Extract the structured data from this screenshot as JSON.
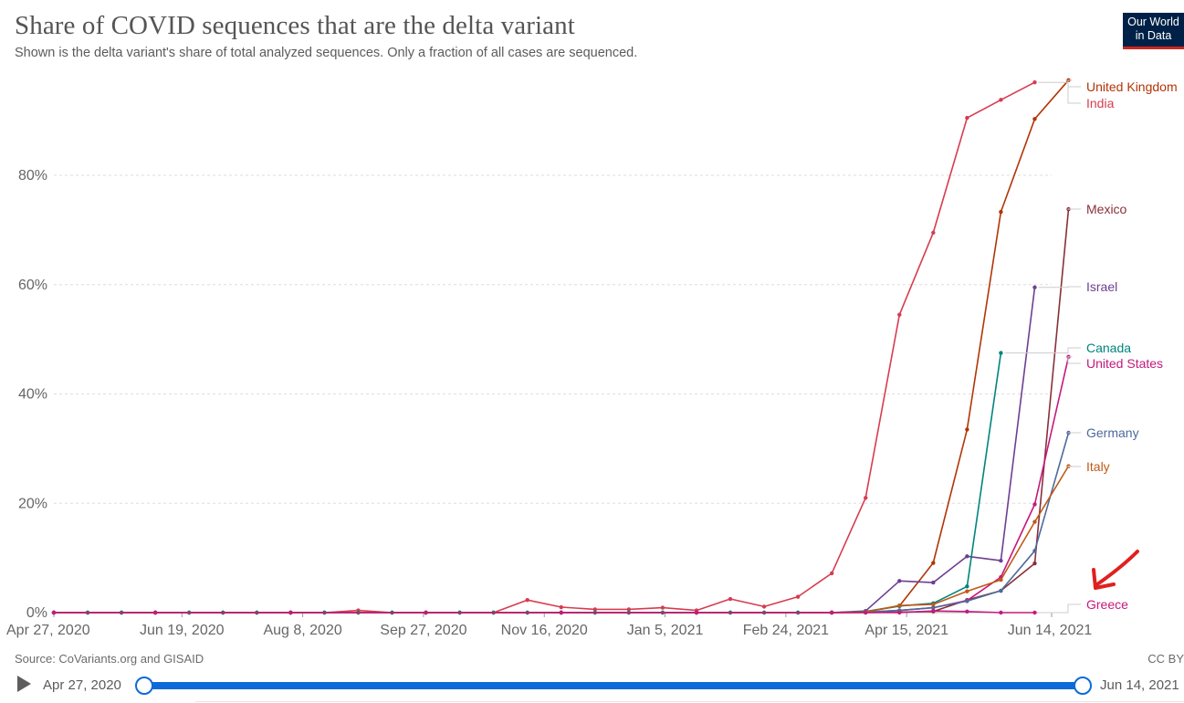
{
  "header": {
    "title": "Share of COVID sequences that are the delta variant",
    "subtitle": "Shown is the delta variant's share of total analyzed sequences. Only a fraction of all cases are sequenced.",
    "logo_line1": "Our World",
    "logo_line2": "in Data"
  },
  "footer": {
    "source": "Source: CoVariants.org and GISAID",
    "license": "CC BY"
  },
  "timeline": {
    "start_label": "Apr 27, 2020",
    "end_label": "Jun 14, 2021",
    "range_selected": [
      0,
      1
    ]
  },
  "annotation": {
    "arrow_color": "#e02020",
    "points_to": "Greece"
  },
  "chart_data": {
    "type": "line",
    "title": "Share of COVID sequences that are the delta variant",
    "subtitle": "Shown is the delta variant's share of total analyzed sequences. Only a fraction of all cases are sequenced.",
    "xlabel": "",
    "ylabel": "",
    "x_unit": "date",
    "x_ticks": [
      "Apr 27, 2020",
      "Jun 19, 2020",
      "Aug 8, 2020",
      "Sep 27, 2020",
      "Nov 16, 2020",
      "Jan 5, 2021",
      "Feb 24, 2021",
      "Apr 15, 2021",
      "Jun 14, 2021"
    ],
    "x_tick_dates": [
      "2020-04-27",
      "2020-06-19",
      "2020-08-08",
      "2020-09-27",
      "2020-11-16",
      "2021-01-05",
      "2021-02-24",
      "2021-04-15",
      "2021-06-14"
    ],
    "y_ticks": [
      0,
      20,
      40,
      60,
      80
    ],
    "y_tick_labels": [
      "0%",
      "20%",
      "40%",
      "60%",
      "80%"
    ],
    "ylim": [
      0,
      97
    ],
    "xlim": [
      "2020-04-27",
      "2021-06-14"
    ],
    "grid": "horizontal dashed",
    "legend": "right-side line end labels",
    "series": [
      {
        "name": "United Kingdom",
        "color": "#b13507",
        "label_offset": -7,
        "points": [
          [
            "2020-04-27",
            0
          ],
          [
            "2020-05-11",
            0
          ],
          [
            "2020-05-25",
            0
          ],
          [
            "2020-06-08",
            0
          ],
          [
            "2020-06-22",
            0
          ],
          [
            "2020-07-06",
            0
          ],
          [
            "2020-07-20",
            0
          ],
          [
            "2020-08-03",
            0
          ],
          [
            "2020-08-17",
            0
          ],
          [
            "2020-08-31",
            0
          ],
          [
            "2020-09-14",
            0
          ],
          [
            "2020-09-28",
            0
          ],
          [
            "2020-10-12",
            0
          ],
          [
            "2020-10-26",
            0
          ],
          [
            "2020-11-09",
            0
          ],
          [
            "2020-11-23",
            0
          ],
          [
            "2020-12-07",
            0
          ],
          [
            "2020-12-21",
            0
          ],
          [
            "2021-01-04",
            0
          ],
          [
            "2021-01-18",
            0
          ],
          [
            "2021-02-01",
            0
          ],
          [
            "2021-02-15",
            0
          ],
          [
            "2021-03-01",
            0
          ],
          [
            "2021-03-15",
            0
          ],
          [
            "2021-03-29",
            0.2
          ],
          [
            "2021-04-12",
            1.2
          ],
          [
            "2021-04-26",
            9.1
          ],
          [
            "2021-05-10",
            33.5
          ],
          [
            "2021-05-24",
            73.3
          ],
          [
            "2021-06-07",
            90.3
          ],
          [
            "2021-06-21",
            97.4
          ]
        ]
      },
      {
        "name": "India",
        "color": "#d73c50",
        "label_offset": 8,
        "points": [
          [
            "2020-04-27",
            0
          ],
          [
            "2020-05-11",
            0
          ],
          [
            "2020-05-25",
            0
          ],
          [
            "2020-06-08",
            0
          ],
          [
            "2020-06-22",
            0
          ],
          [
            "2020-07-06",
            0
          ],
          [
            "2020-07-20",
            0
          ],
          [
            "2020-08-03",
            0
          ],
          [
            "2020-08-17",
            0
          ],
          [
            "2020-08-31",
            0.4
          ],
          [
            "2020-09-14",
            0
          ],
          [
            "2020-09-28",
            0
          ],
          [
            "2020-10-12",
            0
          ],
          [
            "2020-10-26",
            0
          ],
          [
            "2020-11-09",
            2.3
          ],
          [
            "2020-11-23",
            1.0
          ],
          [
            "2020-12-07",
            0.6
          ],
          [
            "2020-12-21",
            0.6
          ],
          [
            "2021-01-04",
            0.9
          ],
          [
            "2021-01-18",
            0.4
          ],
          [
            "2021-02-01",
            2.5
          ],
          [
            "2021-02-15",
            1.1
          ],
          [
            "2021-03-01",
            2.9
          ],
          [
            "2021-03-15",
            7.2
          ],
          [
            "2021-03-29",
            21.0
          ],
          [
            "2021-04-12",
            54.5
          ],
          [
            "2021-04-26",
            69.5
          ],
          [
            "2021-05-10",
            90.5
          ],
          [
            "2021-05-24",
            93.8
          ],
          [
            "2021-06-07",
            97.0
          ]
        ]
      },
      {
        "name": "Mexico",
        "color": "#883039",
        "label_offset": 0,
        "points": [
          [
            "2020-04-27",
            0
          ],
          [
            "2020-06-08",
            0
          ],
          [
            "2020-08-03",
            0
          ],
          [
            "2020-09-28",
            0
          ],
          [
            "2020-11-23",
            0
          ],
          [
            "2021-01-18",
            0
          ],
          [
            "2021-03-15",
            0
          ],
          [
            "2021-03-29",
            0
          ],
          [
            "2021-04-12",
            0.1
          ],
          [
            "2021-04-26",
            0.2
          ],
          [
            "2021-05-10",
            2.3
          ],
          [
            "2021-05-24",
            4.0
          ],
          [
            "2021-06-07",
            9.0
          ],
          [
            "2021-06-21",
            73.8
          ]
        ]
      },
      {
        "name": "Israel",
        "color": "#6d3e91",
        "label_offset": 0,
        "points": [
          [
            "2020-04-27",
            0
          ],
          [
            "2020-06-08",
            0
          ],
          [
            "2020-08-03",
            0
          ],
          [
            "2020-09-28",
            0
          ],
          [
            "2020-11-23",
            0
          ],
          [
            "2021-01-18",
            0
          ],
          [
            "2021-03-15",
            0
          ],
          [
            "2021-03-29",
            0.3
          ],
          [
            "2021-04-12",
            5.8
          ],
          [
            "2021-04-26",
            5.5
          ],
          [
            "2021-05-10",
            10.3
          ],
          [
            "2021-05-24",
            9.5
          ],
          [
            "2021-06-07",
            59.5
          ]
        ]
      },
      {
        "name": "Canada",
        "color": "#00847e",
        "label_offset": -2,
        "points": [
          [
            "2020-04-27",
            0
          ],
          [
            "2020-05-11",
            0
          ],
          [
            "2020-05-25",
            0
          ],
          [
            "2020-06-08",
            0
          ],
          [
            "2020-06-22",
            0
          ],
          [
            "2020-07-06",
            0
          ],
          [
            "2020-07-20",
            0
          ],
          [
            "2020-08-03",
            0
          ],
          [
            "2020-08-17",
            0
          ],
          [
            "2020-08-31",
            0
          ],
          [
            "2020-09-14",
            0
          ],
          [
            "2020-09-28",
            0
          ],
          [
            "2020-10-12",
            0
          ],
          [
            "2020-10-26",
            0
          ],
          [
            "2020-11-09",
            0
          ],
          [
            "2020-11-23",
            0
          ],
          [
            "2020-12-07",
            0
          ],
          [
            "2020-12-21",
            0
          ],
          [
            "2021-01-04",
            0
          ],
          [
            "2021-01-18",
            0
          ],
          [
            "2021-02-01",
            0
          ],
          [
            "2021-02-15",
            0
          ],
          [
            "2021-03-01",
            0
          ],
          [
            "2021-03-15",
            0
          ],
          [
            "2021-03-29",
            0.2
          ],
          [
            "2021-04-12",
            1.2
          ],
          [
            "2021-04-26",
            1.7
          ],
          [
            "2021-05-10",
            4.8
          ],
          [
            "2021-05-24",
            47.5
          ]
        ]
      },
      {
        "name": "United States",
        "color": "#c5197d",
        "label_offset": 5,
        "points": [
          [
            "2020-04-27",
            0
          ],
          [
            "2020-06-08",
            0
          ],
          [
            "2020-08-03",
            0
          ],
          [
            "2020-09-28",
            0
          ],
          [
            "2020-11-23",
            0
          ],
          [
            "2021-01-18",
            0
          ],
          [
            "2021-03-15",
            0
          ],
          [
            "2021-03-29",
            0.1
          ],
          [
            "2021-04-12",
            0.4
          ],
          [
            "2021-04-26",
            0.9
          ],
          [
            "2021-05-10",
            2.2
          ],
          [
            "2021-05-24",
            6.5
          ],
          [
            "2021-06-07",
            19.8
          ],
          [
            "2021-06-21",
            46.8
          ]
        ]
      },
      {
        "name": "Germany",
        "color": "#4c6a9c",
        "label_offset": 0,
        "points": [
          [
            "2020-04-27",
            0
          ],
          [
            "2020-06-08",
            0
          ],
          [
            "2020-08-03",
            0
          ],
          [
            "2020-09-28",
            0
          ],
          [
            "2020-11-23",
            0
          ],
          [
            "2021-01-18",
            0
          ],
          [
            "2021-03-15",
            0
          ],
          [
            "2021-03-29",
            0.1
          ],
          [
            "2021-04-12",
            0.4
          ],
          [
            "2021-04-26",
            0.9
          ],
          [
            "2021-05-10",
            2.1
          ],
          [
            "2021-05-24",
            4.0
          ],
          [
            "2021-06-07",
            11.3
          ],
          [
            "2021-06-21",
            32.9
          ]
        ]
      },
      {
        "name": "Italy",
        "color": "#c05917",
        "label_offset": 0,
        "points": [
          [
            "2020-04-27",
            0
          ],
          [
            "2020-06-08",
            0
          ],
          [
            "2020-08-03",
            0
          ],
          [
            "2020-09-28",
            0
          ],
          [
            "2020-11-23",
            0
          ],
          [
            "2021-01-18",
            0
          ],
          [
            "2021-03-15",
            0
          ],
          [
            "2021-03-29",
            0.1
          ],
          [
            "2021-04-12",
            1.3
          ],
          [
            "2021-04-26",
            1.5
          ],
          [
            "2021-05-10",
            3.9
          ],
          [
            "2021-05-24",
            6.0
          ],
          [
            "2021-06-07",
            16.6
          ],
          [
            "2021-06-21",
            26.8
          ]
        ]
      },
      {
        "name": "Greece",
        "color": "#c5197d",
        "label_offset": -1,
        "points": [
          [
            "2020-04-27",
            0
          ],
          [
            "2020-06-08",
            0
          ],
          [
            "2020-08-03",
            0
          ],
          [
            "2020-09-28",
            0
          ],
          [
            "2020-11-23",
            0
          ],
          [
            "2021-01-18",
            0
          ],
          [
            "2021-03-15",
            0
          ],
          [
            "2021-03-29",
            0
          ],
          [
            "2021-04-12",
            0
          ],
          [
            "2021-04-26",
            0.3
          ],
          [
            "2021-05-10",
            0.2
          ],
          [
            "2021-05-24",
            0
          ],
          [
            "2021-06-07",
            0
          ]
        ]
      }
    ]
  }
}
